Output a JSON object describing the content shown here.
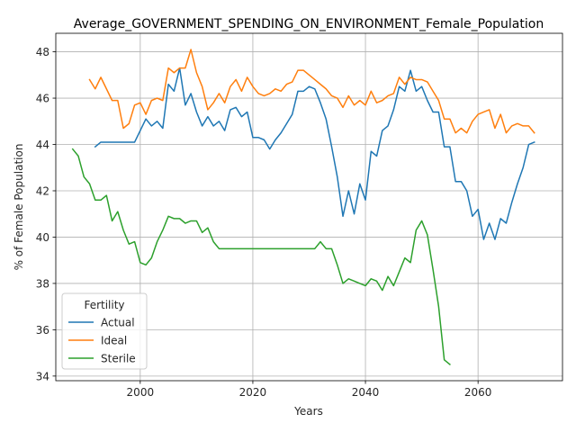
{
  "chart_data": {
    "type": "line",
    "title": "Average_GOVERNMENT_SPENDING_ON_ENVIRONMENT_Female_Population",
    "xlabel": "Years",
    "ylabel": "% of Female Population",
    "xlim": [
      1985,
      2075
    ],
    "ylim": [
      33.8,
      48.8
    ],
    "xticks": [
      2000,
      2020,
      2040,
      2060
    ],
    "yticks": [
      34,
      36,
      38,
      40,
      42,
      44,
      46,
      48
    ],
    "grid": true,
    "legend": {
      "title": "Fertility",
      "position": "lower-left"
    },
    "series": [
      {
        "name": "Actual",
        "color": "#1f77b4",
        "points": [
          [
            1992,
            43.9
          ],
          [
            1993,
            44.1
          ],
          [
            1994,
            44.1
          ],
          [
            1995,
            44.1
          ],
          [
            1996,
            44.1
          ],
          [
            1997,
            44.1
          ],
          [
            1998,
            44.1
          ],
          [
            1999,
            44.1
          ],
          [
            2000,
            44.6
          ],
          [
            2001,
            45.1
          ],
          [
            2002,
            44.8
          ],
          [
            2003,
            45.0
          ],
          [
            2004,
            44.7
          ],
          [
            2005,
            46.6
          ],
          [
            2006,
            46.3
          ],
          [
            2007,
            47.3
          ],
          [
            2008,
            45.7
          ],
          [
            2009,
            46.2
          ],
          [
            2010,
            45.4
          ],
          [
            2011,
            44.8
          ],
          [
            2012,
            45.2
          ],
          [
            2013,
            44.8
          ],
          [
            2014,
            45.0
          ],
          [
            2015,
            44.6
          ],
          [
            2016,
            45.5
          ],
          [
            2017,
            45.6
          ],
          [
            2018,
            45.2
          ],
          [
            2019,
            45.4
          ],
          [
            2020,
            44.3
          ],
          [
            2021,
            44.3
          ],
          [
            2022,
            44.2
          ],
          [
            2023,
            43.8
          ],
          [
            2024,
            44.2
          ],
          [
            2025,
            44.5
          ],
          [
            2026,
            44.9
          ],
          [
            2027,
            45.3
          ],
          [
            2028,
            46.3
          ],
          [
            2029,
            46.3
          ],
          [
            2030,
            46.5
          ],
          [
            2031,
            46.4
          ],
          [
            2032,
            45.8
          ],
          [
            2033,
            45.1
          ],
          [
            2034,
            43.9
          ],
          [
            2035,
            42.6
          ],
          [
            2036,
            40.9
          ],
          [
            2037,
            42.0
          ],
          [
            2038,
            41.0
          ],
          [
            2039,
            42.3
          ],
          [
            2040,
            41.6
          ],
          [
            2041,
            43.7
          ],
          [
            2042,
            43.5
          ],
          [
            2043,
            44.6
          ],
          [
            2044,
            44.8
          ],
          [
            2045,
            45.5
          ],
          [
            2046,
            46.5
          ],
          [
            2047,
            46.3
          ],
          [
            2048,
            47.2
          ],
          [
            2049,
            46.3
          ],
          [
            2050,
            46.5
          ],
          [
            2051,
            45.9
          ],
          [
            2052,
            45.4
          ],
          [
            2053,
            45.4
          ],
          [
            2054,
            43.9
          ],
          [
            2055,
            43.9
          ],
          [
            2056,
            42.4
          ],
          [
            2057,
            42.4
          ],
          [
            2058,
            42.0
          ],
          [
            2059,
            40.9
          ],
          [
            2060,
            41.2
          ],
          [
            2061,
            39.9
          ],
          [
            2062,
            40.6
          ],
          [
            2063,
            39.9
          ],
          [
            2064,
            40.8
          ],
          [
            2065,
            40.6
          ],
          [
            2066,
            41.5
          ],
          [
            2067,
            42.3
          ],
          [
            2068,
            43.0
          ],
          [
            2069,
            44.0
          ],
          [
            2070,
            44.1
          ]
        ]
      },
      {
        "name": "Ideal",
        "color": "#ff7f0e",
        "points": [
          [
            1991,
            46.8
          ],
          [
            1992,
            46.4
          ],
          [
            1993,
            46.9
          ],
          [
            1994,
            46.4
          ],
          [
            1995,
            45.9
          ],
          [
            1996,
            45.9
          ],
          [
            1997,
            44.7
          ],
          [
            1998,
            44.9
          ],
          [
            1999,
            45.7
          ],
          [
            2000,
            45.8
          ],
          [
            2001,
            45.3
          ],
          [
            2002,
            45.9
          ],
          [
            2003,
            46.0
          ],
          [
            2004,
            45.9
          ],
          [
            2005,
            47.3
          ],
          [
            2006,
            47.1
          ],
          [
            2007,
            47.3
          ],
          [
            2008,
            47.3
          ],
          [
            2009,
            48.1
          ],
          [
            2010,
            47.1
          ],
          [
            2011,
            46.5
          ],
          [
            2012,
            45.5
          ],
          [
            2013,
            45.8
          ],
          [
            2014,
            46.2
          ],
          [
            2015,
            45.8
          ],
          [
            2016,
            46.5
          ],
          [
            2017,
            46.8
          ],
          [
            2018,
            46.3
          ],
          [
            2019,
            46.9
          ],
          [
            2020,
            46.5
          ],
          [
            2021,
            46.2
          ],
          [
            2022,
            46.1
          ],
          [
            2023,
            46.2
          ],
          [
            2024,
            46.4
          ],
          [
            2025,
            46.3
          ],
          [
            2026,
            46.6
          ],
          [
            2027,
            46.7
          ],
          [
            2028,
            47.2
          ],
          [
            2029,
            47.2
          ],
          [
            2030,
            47.0
          ],
          [
            2031,
            46.8
          ],
          [
            2032,
            46.6
          ],
          [
            2033,
            46.4
          ],
          [
            2034,
            46.1
          ],
          [
            2035,
            46.0
          ],
          [
            2036,
            45.6
          ],
          [
            2037,
            46.1
          ],
          [
            2038,
            45.7
          ],
          [
            2039,
            45.9
          ],
          [
            2040,
            45.7
          ],
          [
            2041,
            46.3
          ],
          [
            2042,
            45.8
          ],
          [
            2043,
            45.9
          ],
          [
            2044,
            46.1
          ],
          [
            2045,
            46.2
          ],
          [
            2046,
            46.9
          ],
          [
            2047,
            46.6
          ],
          [
            2048,
            46.9
          ],
          [
            2049,
            46.8
          ],
          [
            2050,
            46.8
          ],
          [
            2051,
            46.7
          ],
          [
            2052,
            46.3
          ],
          [
            2053,
            45.9
          ],
          [
            2054,
            45.1
          ],
          [
            2055,
            45.1
          ],
          [
            2056,
            44.5
          ],
          [
            2057,
            44.7
          ],
          [
            2058,
            44.5
          ],
          [
            2059,
            45.0
          ],
          [
            2060,
            45.3
          ],
          [
            2061,
            45.4
          ],
          [
            2062,
            45.5
          ],
          [
            2063,
            44.7
          ],
          [
            2064,
            45.3
          ],
          [
            2065,
            44.5
          ],
          [
            2066,
            44.8
          ],
          [
            2067,
            44.9
          ],
          [
            2068,
            44.8
          ],
          [
            2069,
            44.8
          ],
          [
            2070,
            44.5
          ]
        ]
      },
      {
        "name": "Sterile",
        "color": "#2ca02c",
        "points": [
          [
            1988,
            43.8
          ],
          [
            1989,
            43.5
          ],
          [
            1990,
            42.6
          ],
          [
            1991,
            42.3
          ],
          [
            1992,
            41.6
          ],
          [
            1993,
            41.6
          ],
          [
            1994,
            41.8
          ],
          [
            1995,
            40.7
          ],
          [
            1996,
            41.1
          ],
          [
            1997,
            40.3
          ],
          [
            1998,
            39.7
          ],
          [
            1999,
            39.8
          ],
          [
            2000,
            38.9
          ],
          [
            2001,
            38.8
          ],
          [
            2002,
            39.1
          ],
          [
            2003,
            39.8
          ],
          [
            2004,
            40.3
          ],
          [
            2005,
            40.9
          ],
          [
            2006,
            40.8
          ],
          [
            2007,
            40.8
          ],
          [
            2008,
            40.6
          ],
          [
            2009,
            40.7
          ],
          [
            2010,
            40.7
          ],
          [
            2011,
            40.2
          ],
          [
            2012,
            40.4
          ],
          [
            2013,
            39.8
          ],
          [
            2014,
            39.5
          ],
          [
            2015,
            39.5
          ],
          [
            2016,
            39.5
          ],
          [
            2017,
            39.5
          ],
          [
            2018,
            39.5
          ],
          [
            2019,
            39.5
          ],
          [
            2020,
            39.5
          ],
          [
            2021,
            39.5
          ],
          [
            2022,
            39.5
          ],
          [
            2023,
            39.5
          ],
          [
            2024,
            39.5
          ],
          [
            2025,
            39.5
          ],
          [
            2026,
            39.5
          ],
          [
            2027,
            39.5
          ],
          [
            2028,
            39.5
          ],
          [
            2029,
            39.5
          ],
          [
            2030,
            39.5
          ],
          [
            2031,
            39.5
          ],
          [
            2032,
            39.8
          ],
          [
            2033,
            39.5
          ],
          [
            2034,
            39.5
          ],
          [
            2035,
            38.8
          ],
          [
            2036,
            38.0
          ],
          [
            2037,
            38.2
          ],
          [
            2038,
            38.1
          ],
          [
            2039,
            38.0
          ],
          [
            2040,
            37.9
          ],
          [
            2041,
            38.2
          ],
          [
            2042,
            38.1
          ],
          [
            2043,
            37.7
          ],
          [
            2044,
            38.3
          ],
          [
            2045,
            37.9
          ],
          [
            2046,
            38.5
          ],
          [
            2047,
            39.1
          ],
          [
            2048,
            38.9
          ],
          [
            2049,
            40.3
          ],
          [
            2050,
            40.7
          ],
          [
            2051,
            40.1
          ],
          [
            2052,
            38.6
          ],
          [
            2053,
            37.0
          ],
          [
            2054,
            34.7
          ],
          [
            2055,
            34.5
          ]
        ]
      }
    ]
  }
}
